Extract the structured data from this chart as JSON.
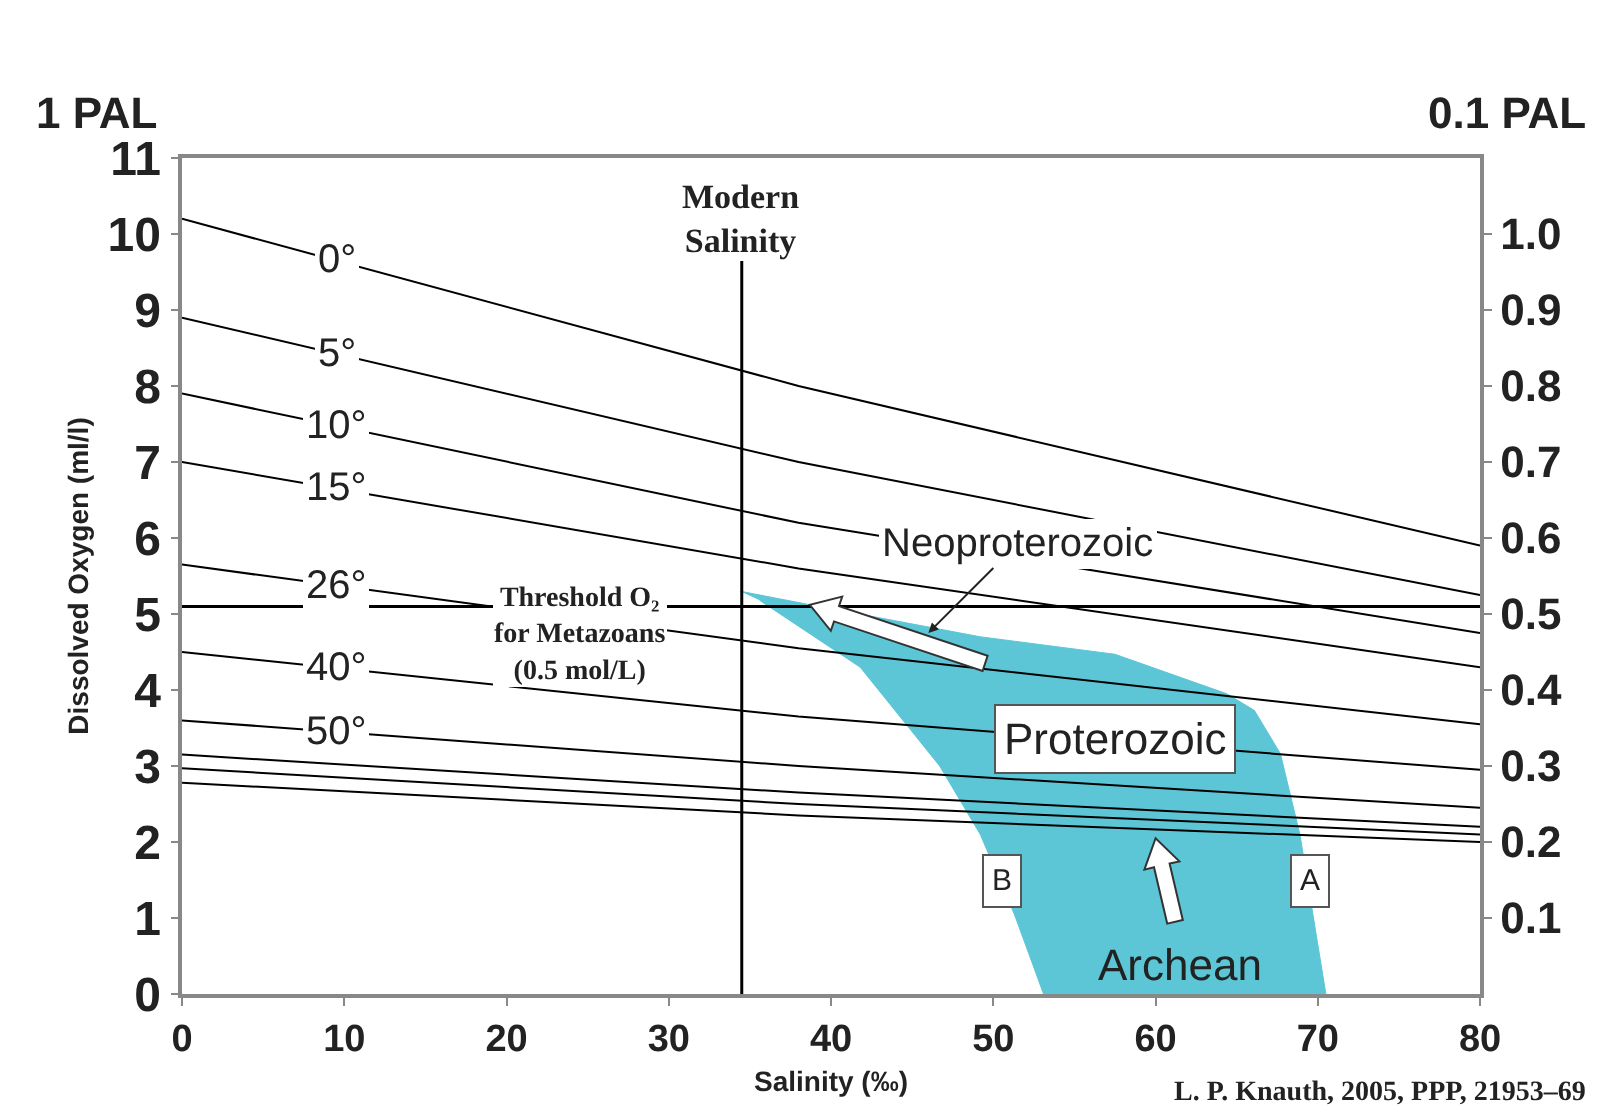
{
  "chart_data": {
    "type": "line",
    "xlabel": "Salinity (‰)",
    "ylabel": "Dissolved Oxygen (ml/l)",
    "xlim": [
      0,
      80
    ],
    "xticks": [
      0,
      10,
      20,
      30,
      40,
      50,
      60,
      70,
      80
    ],
    "ylim": [
      0,
      11
    ],
    "yticks": [
      0,
      1,
      2,
      3,
      4,
      5,
      6,
      7,
      8,
      9,
      10,
      11
    ],
    "y2lim": [
      0,
      1.1
    ],
    "y2ticks": [
      0.1,
      0.2,
      0.3,
      0.4,
      0.5,
      0.6,
      0.7,
      0.8,
      0.9,
      {
        "value": 1,
        "label": "1.0"
      }
    ],
    "x": [
      0,
      38,
      80
    ],
    "series": [
      {
        "type": "area",
        "color": "#5cc6d6",
        "x": [
          34.4,
          38.5,
          49.2,
          57.5,
          64.4,
          66.1,
          67.7,
          68.9,
          70.5,
          53.1,
          51.3,
          49.2,
          46.7,
          41.8,
          35.6
        ],
        "values": [
          5.3,
          5.13,
          4.7,
          4.47,
          3.95,
          3.73,
          3.16,
          2.1,
          0,
          0,
          1.05,
          2.1,
          3.0,
          4.3,
          5.18
        ]
      },
      {
        "name": "0°",
        "color": "#000000",
        "values": [
          10.2,
          8.0,
          5.9
        ]
      },
      {
        "name": "5°",
        "color": "#000000",
        "values": [
          8.9,
          7.0,
          5.25
        ]
      },
      {
        "name": "10°",
        "color": "#000000",
        "values": [
          7.9,
          6.2,
          4.75
        ]
      },
      {
        "name": "15°",
        "color": "#000000",
        "values": [
          7.0,
          5.6,
          4.3
        ]
      },
      {
        "name": "26°",
        "color": "#000000",
        "values": [
          5.65,
          4.55,
          3.55
        ]
      },
      {
        "name": "40°",
        "color": "#000000",
        "values": [
          4.5,
          3.65,
          2.95
        ]
      },
      {
        "name": "50°",
        "color": "#000000",
        "values": [
          3.6,
          3.0,
          2.45
        ]
      },
      {
        "color": "#000000",
        "values": [
          3.15,
          2.65,
          2.2
        ]
      },
      {
        "color": "#000000",
        "values": [
          2.97,
          2.5,
          2.1
        ]
      },
      {
        "color": "#000000",
        "values": [
          2.78,
          2.35,
          2.0
        ]
      }
    ],
    "ref_lines": [
      {
        "axis": "y",
        "value": 5.1,
        "label": "Threshold O₂\nfor Metazoans\n(0.5 mol/L)"
      },
      {
        "axis": "x",
        "value": 34.5,
        "label": "Modern\nSalinity"
      }
    ],
    "annotations": [
      {
        "text": "Neoproterozoic",
        "x": 46,
        "y": 4.75
      },
      {
        "text": "Proterozoic",
        "x": 57.5,
        "y": 3.35
      },
      {
        "text": "B",
        "x": 50.5,
        "y": 1.5
      },
      {
        "text": "A",
        "x": 69.5,
        "y": 1.5
      },
      {
        "text": "Archean",
        "x": 60,
        "y": 2.05
      },
      "1 PAL",
      "0.1 PAL",
      "L. P. Knauth, 2005, PPP, 21953–69"
    ],
    "grid": false,
    "legend": false
  }
}
